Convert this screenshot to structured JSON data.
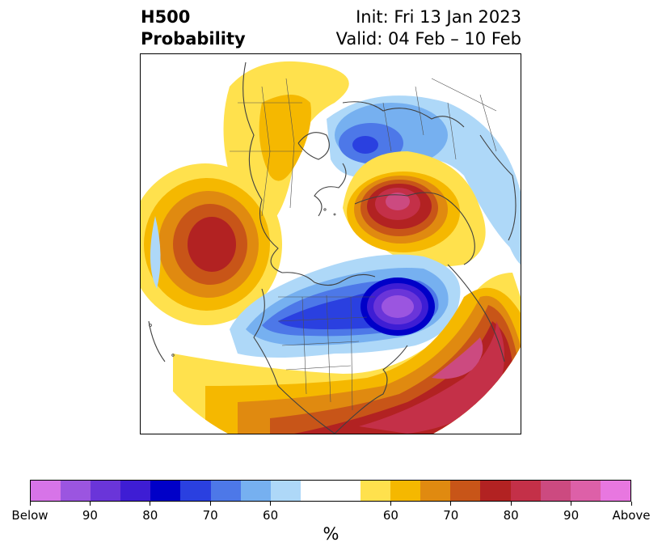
{
  "header": {
    "title_line1": "H500",
    "title_line2": "Probability",
    "init": "Init: Fri 13 Jan 2023",
    "valid": "Valid: 04 Feb – 10 Feb"
  },
  "map": {
    "projection": "north-polar-stereographic",
    "layers": [
      "coastlines",
      "country-borders",
      "state-borders"
    ]
  },
  "colorbar": {
    "colors": [
      "#d774e8",
      "#9b55e0",
      "#6a35d9",
      "#3e1dd4",
      "#0000c8",
      "#2a40e0",
      "#4d78e8",
      "#76b0f0",
      "#aed8f8",
      "#ffffff",
      "#ffffff",
      "#ffe14d",
      "#f5b800",
      "#e08a10",
      "#c85518",
      "#b22222",
      "#c43048",
      "#cc4a80",
      "#dd60a8",
      "#e877e0"
    ],
    "tick_labels": [
      "Below",
      "90",
      "80",
      "70",
      "60",
      "60",
      "70",
      "80",
      "90",
      "Above"
    ],
    "unit": "%"
  },
  "colors": {
    "above_high": "#b22222",
    "above_max": "#cc4a80",
    "below_high": "#0000c8",
    "below_max": "#9b55e0",
    "near_normal": "#ffffff"
  }
}
